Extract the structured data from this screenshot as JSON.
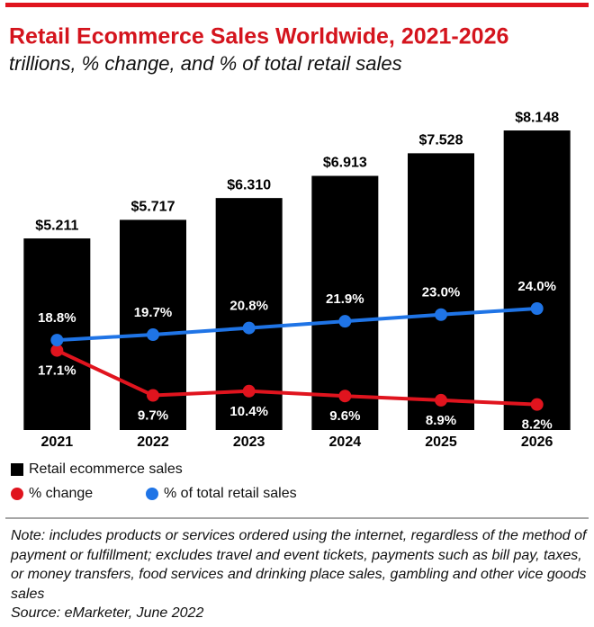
{
  "chart_data": {
    "type": "bar",
    "title": "Retail Ecommerce Sales Worldwide, 2021-2026",
    "subtitle": "trillions, % change, and % of total retail sales",
    "categories": [
      "2021",
      "2022",
      "2023",
      "2024",
      "2025",
      "2026"
    ],
    "ylim": [
      0,
      9.25
    ],
    "y2lim": [
      4,
      60
    ],
    "series": [
      {
        "name": "Retail ecommerce sales",
        "type": "bar",
        "color": "#000000",
        "values": [
          5.211,
          5.717,
          6.31,
          6.913,
          7.528,
          8.148
        ],
        "value_labels": [
          "$5.211",
          "$5.717",
          "$6.310",
          "$6.913",
          "$7.528",
          "$8.148"
        ]
      },
      {
        "name": "% change",
        "type": "line",
        "axis": "y2",
        "color": "#e0141e",
        "values": [
          17.1,
          9.7,
          10.4,
          9.6,
          8.9,
          8.2
        ],
        "value_labels": [
          "17.1%",
          "9.7%",
          "10.4%",
          "9.6%",
          "8.9%",
          "8.2%"
        ]
      },
      {
        "name": "% of total retail sales",
        "type": "line",
        "axis": "y2",
        "color": "#1f74e6",
        "values": [
          18.8,
          19.7,
          20.8,
          21.9,
          23.0,
          24.0
        ],
        "value_labels": [
          "18.8%",
          "19.7%",
          "20.8%",
          "21.9%",
          "23.0%",
          "24.0%"
        ]
      }
    ],
    "note": "Note: includes products or services ordered using the internet, regardless of the method of payment or fulfillment; excludes travel and event tickets, payments such as bill pay, taxes, or money transfers, food services and drinking place sales, gambling and other vice goods sales",
    "source": "Source: eMarketer, June 2022"
  }
}
